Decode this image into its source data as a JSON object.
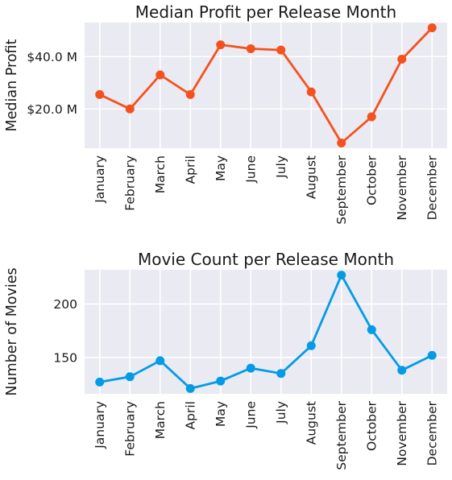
{
  "chart_data": [
    {
      "type": "line",
      "title": "Median Profit per Release Month",
      "xlabel": "",
      "ylabel": "Median Profit",
      "categories": [
        "January",
        "February",
        "March",
        "April",
        "May",
        "June",
        "July",
        "August",
        "September",
        "October",
        "November",
        "December"
      ],
      "values": [
        25.5,
        20.0,
        33.0,
        25.5,
        44.5,
        43.0,
        42.5,
        26.5,
        7.0,
        17.0,
        39.0,
        51.0
      ],
      "unit": "M",
      "ylim": [
        5,
        53
      ],
      "yticks": [
        20,
        40
      ],
      "ytick_labels": [
        "$20.0 M",
        "$40.0 M"
      ],
      "color": "#f4511e",
      "grid": true
    },
    {
      "type": "line",
      "title": "Movie Count per Release Month",
      "xlabel": "",
      "ylabel": "Number of Movies",
      "categories": [
        "January",
        "February",
        "March",
        "April",
        "May",
        "June",
        "July",
        "August",
        "September",
        "October",
        "November",
        "December"
      ],
      "values": [
        127,
        132,
        147,
        121,
        128,
        140,
        135,
        161,
        227,
        176,
        138,
        152
      ],
      "ylim": [
        116,
        232
      ],
      "yticks": [
        150,
        200
      ],
      "ytick_labels": [
        "150",
        "200"
      ],
      "color": "#039be5",
      "grid": true
    }
  ]
}
